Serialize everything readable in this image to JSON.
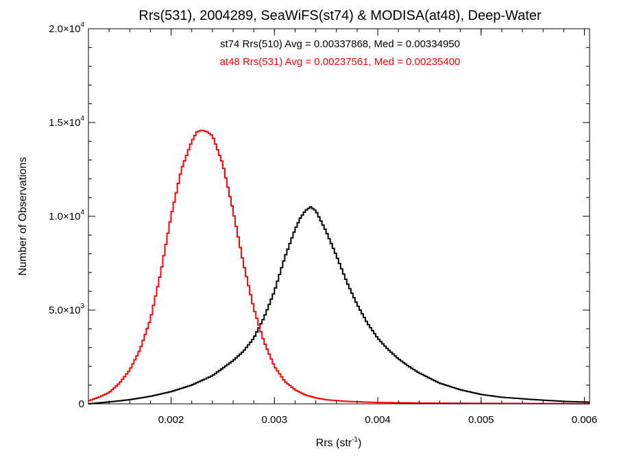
{
  "chart_data": {
    "type": "line",
    "title": "Rrs(531), 2004289, SeaWiFS(st74) & MODISA(at48), Deep-Water",
    "xlabel": "Rrs (str",
    "xlabel_sup": "-1",
    "xlabel_end": ")",
    "ylabel": "Number of Observations",
    "xlim": [
      0.0012,
      0.00605
    ],
    "ylim": [
      0,
      20000
    ],
    "grid": false,
    "x_ticks": [
      {
        "value": 0.002,
        "label": "0.002"
      },
      {
        "value": 0.003,
        "label": "0.003"
      },
      {
        "value": 0.004,
        "label": "0.004"
      },
      {
        "value": 0.005,
        "label": "0.005"
      },
      {
        "value": 0.006,
        "label": "0.006"
      }
    ],
    "y_ticks": [
      {
        "value": 0,
        "mant": "0",
        "exp": ""
      },
      {
        "value": 5000,
        "mant": "5.0×10",
        "exp": "3"
      },
      {
        "value": 10000,
        "mant": "1.0×10",
        "exp": "4"
      },
      {
        "value": 15000,
        "mant": "1.5×10",
        "exp": "4"
      },
      {
        "value": 20000,
        "mant": "2.0×10",
        "exp": "4"
      }
    ],
    "annotations": [
      {
        "text": "st74 Rrs(510) Avg = 0.00337868, Med = 0.00334950",
        "color": "#000000"
      },
      {
        "text": "at48 Rrs(531) Avg = 0.00237561, Med = 0.00235400",
        "color": "#ff0000"
      }
    ],
    "series": [
      {
        "color": "#000000",
        "x": [
          0.0012,
          0.0014,
          0.0016,
          0.0018,
          0.002,
          0.0022,
          0.0024,
          0.0026,
          0.0027,
          0.0028,
          0.0029,
          0.003,
          0.0031,
          0.0032,
          0.00325,
          0.0033,
          0.00335,
          0.0034,
          0.0035,
          0.0036,
          0.0037,
          0.0038,
          0.0039,
          0.004,
          0.0041,
          0.0042,
          0.0043,
          0.0044,
          0.0046,
          0.0048,
          0.005,
          0.0052,
          0.0055,
          0.0058,
          0.00605
        ],
        "y": [
          0,
          100,
          220,
          400,
          650,
          1000,
          1500,
          2300,
          2800,
          3500,
          4600,
          6000,
          7800,
          9300,
          9900,
          10300,
          10500,
          10300,
          9200,
          7900,
          6500,
          5300,
          4300,
          3500,
          2900,
          2400,
          2000,
          1650,
          1100,
          750,
          500,
          350,
          230,
          130,
          90
        ]
      },
      {
        "color": "#ff0000",
        "x": [
          0.0012,
          0.0013,
          0.0014,
          0.0015,
          0.0016,
          0.0017,
          0.0018,
          0.0019,
          0.002,
          0.0021,
          0.0022,
          0.00225,
          0.0023,
          0.00235,
          0.0024,
          0.0025,
          0.0026,
          0.0027,
          0.0028,
          0.0029,
          0.003,
          0.0031,
          0.0032,
          0.0033,
          0.0034,
          0.0035,
          0.0037,
          0.004,
          0.0045,
          0.005,
          0.0055,
          0.00605
        ],
        "y": [
          150,
          350,
          600,
          1100,
          1800,
          2900,
          4500,
          7000,
          10000,
          12500,
          14000,
          14500,
          14600,
          14500,
          14300,
          12800,
          10300,
          7500,
          5100,
          3300,
          2000,
          1200,
          750,
          470,
          320,
          220,
          130,
          70,
          40,
          25,
          15,
          10
        ]
      }
    ]
  }
}
